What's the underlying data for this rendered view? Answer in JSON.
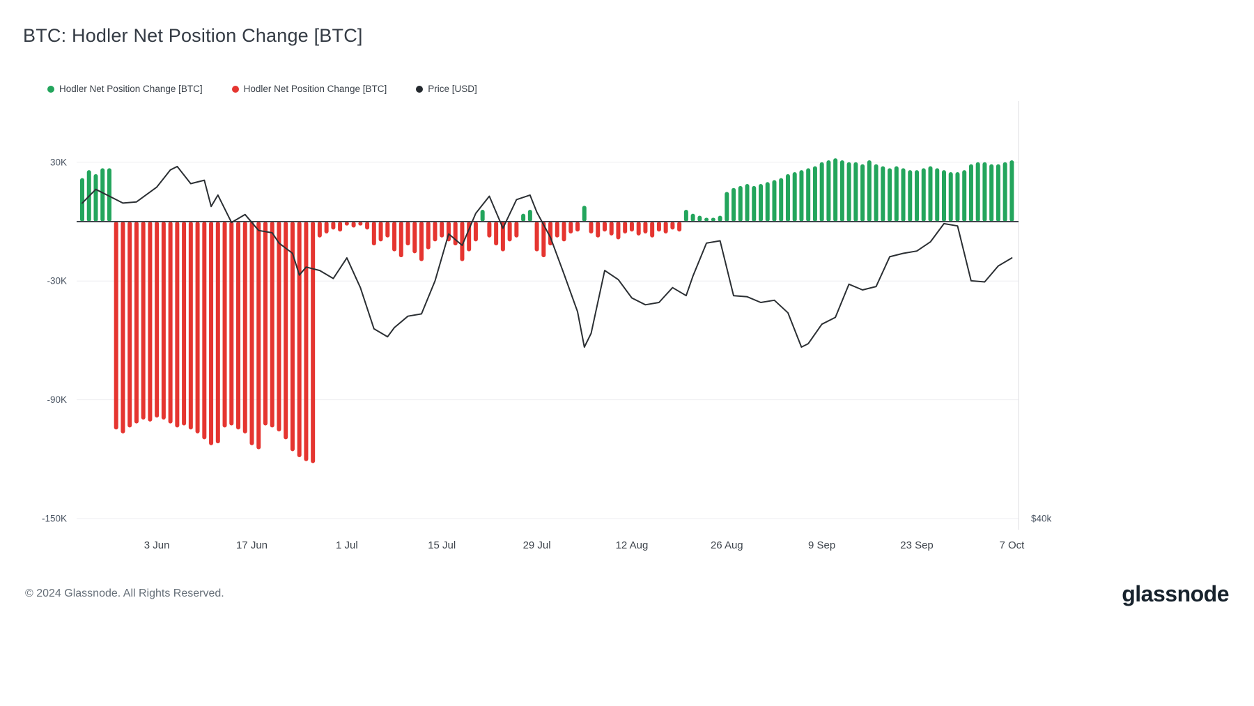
{
  "page": {
    "title": "BTC: Hodler Net Position Change [BTC]",
    "footer_copyright": "© 2024 Glassnode. All Rights Reserved.",
    "brand": "glassnode"
  },
  "legend": [
    {
      "label": "Hodler Net Position Change [BTC]",
      "color": "#23a55c"
    },
    {
      "label": "Hodler Net Position Change [BTC]",
      "color": "#e53530"
    },
    {
      "label": "Price [USD]",
      "color": "#24292e"
    }
  ],
  "chart_data": {
    "type": "bar",
    "title": "BTC: Hodler Net Position Change [BTC]",
    "y_axis": {
      "tick_labels": [
        "30K",
        "-30K",
        "-90K",
        "-150K"
      ],
      "tick_values": [
        30000,
        -30000,
        -90000,
        -150000
      ],
      "range": [
        -160000,
        45000
      ],
      "grid": true
    },
    "x_axis": {
      "tick_labels": [
        "3 Jun",
        "17 Jun",
        "1 Jul",
        "15 Jul",
        "29 Jul",
        "12 Aug",
        "26 Aug",
        "9 Sep",
        "23 Sep",
        "7 Oct"
      ],
      "tick_indices": [
        11,
        25,
        39,
        53,
        67,
        81,
        95,
        109,
        123,
        137
      ]
    },
    "right_axis_label": "$40k",
    "bars": {
      "name": "Hodler Net Position Change [BTC]",
      "start_date": "2024-05-23",
      "values": [
        22000,
        26000,
        24000,
        27000,
        27000,
        -105000,
        -107000,
        -104000,
        -102000,
        -100000,
        -101000,
        -99000,
        -100000,
        -102000,
        -104000,
        -103000,
        -105000,
        -107000,
        -110000,
        -113000,
        -112000,
        -104000,
        -103000,
        -105000,
        -107000,
        -113000,
        -115000,
        -103000,
        -104000,
        -106000,
        -110000,
        -116000,
        -119000,
        -121000,
        -122000,
        -8000,
        -6000,
        -4000,
        -5000,
        -2000,
        -3000,
        -2000,
        -4000,
        -12000,
        -10000,
        -8000,
        -15000,
        -18000,
        -12000,
        -16000,
        -20000,
        -14000,
        -10000,
        -8000,
        -10000,
        -12000,
        -20000,
        -15000,
        -10000,
        6000,
        -8000,
        -12000,
        -15000,
        -10000,
        -8000,
        4000,
        6000,
        -15000,
        -18000,
        -12000,
        -8000,
        -10000,
        -6000,
        -5000,
        8000,
        -6000,
        -8000,
        -5000,
        -7000,
        -9000,
        -6000,
        -5000,
        -7000,
        -6000,
        -8000,
        -5000,
        -6000,
        -4000,
        -5000,
        6000,
        4000,
        3000,
        2000,
        2000,
        3000,
        15000,
        17000,
        18000,
        19000,
        18000,
        19000,
        20000,
        21000,
        22000,
        24000,
        25000,
        26000,
        27000,
        28000,
        30000,
        31000,
        32000,
        31000,
        30000,
        30000,
        29000,
        31000,
        29000,
        28000,
        27000,
        28000,
        27000,
        26000,
        26000,
        27000,
        28000,
        27000,
        26000,
        25000,
        25000,
        26000,
        29000,
        30000,
        30000,
        29000,
        29000,
        30000,
        31000
      ]
    },
    "price": {
      "name": "Price [USD]",
      "unit": "thousand USD",
      "points": [
        [
          0,
          67.6
        ],
        [
          2,
          68.8
        ],
        [
          4,
          68.2
        ],
        [
          6,
          67.6
        ],
        [
          8,
          67.7
        ],
        [
          11,
          69.0
        ],
        [
          13,
          70.5
        ],
        [
          14,
          70.8
        ],
        [
          16,
          69.3
        ],
        [
          18,
          69.6
        ],
        [
          19,
          67.3
        ],
        [
          20,
          68.3
        ],
        [
          22,
          65.9
        ],
        [
          24,
          66.6
        ],
        [
          26,
          65.2
        ],
        [
          28,
          65.0
        ],
        [
          29,
          64.1
        ],
        [
          31,
          63.2
        ],
        [
          32,
          61.3
        ],
        [
          33,
          62.0
        ],
        [
          35,
          61.7
        ],
        [
          37,
          61.0
        ],
        [
          39,
          62.8
        ],
        [
          41,
          60.2
        ],
        [
          43,
          56.6
        ],
        [
          45,
          55.9
        ],
        [
          46,
          56.7
        ],
        [
          48,
          57.7
        ],
        [
          50,
          57.9
        ],
        [
          52,
          60.8
        ],
        [
          54,
          64.9
        ],
        [
          56,
          63.9
        ],
        [
          58,
          66.7
        ],
        [
          60,
          68.2
        ],
        [
          62,
          65.4
        ],
        [
          64,
          67.9
        ],
        [
          66,
          68.3
        ],
        [
          67,
          66.8
        ],
        [
          69,
          64.6
        ],
        [
          71,
          61.4
        ],
        [
          73,
          58.1
        ],
        [
          74,
          55.0
        ],
        [
          75,
          56.2
        ],
        [
          77,
          61.7
        ],
        [
          79,
          60.9
        ],
        [
          81,
          59.3
        ],
        [
          83,
          58.7
        ],
        [
          85,
          58.9
        ],
        [
          87,
          60.2
        ],
        [
          89,
          59.5
        ],
        [
          90,
          61.2
        ],
        [
          92,
          64.1
        ],
        [
          94,
          64.3
        ],
        [
          96,
          59.5
        ],
        [
          98,
          59.4
        ],
        [
          100,
          58.9
        ],
        [
          102,
          59.1
        ],
        [
          104,
          58.0
        ],
        [
          106,
          55.0
        ],
        [
          107,
          55.3
        ],
        [
          109,
          57.0
        ],
        [
          111,
          57.6
        ],
        [
          113,
          60.5
        ],
        [
          115,
          60.0
        ],
        [
          117,
          60.3
        ],
        [
          119,
          62.9
        ],
        [
          121,
          63.2
        ],
        [
          123,
          63.4
        ],
        [
          125,
          64.2
        ],
        [
          127,
          65.8
        ],
        [
          129,
          65.6
        ],
        [
          131,
          60.8
        ],
        [
          133,
          60.7
        ],
        [
          135,
          62.1
        ],
        [
          137,
          62.8
        ]
      ]
    },
    "colors": {
      "positive": "#23a55c",
      "negative": "#e53530",
      "price": "#2b2f33",
      "grid": "#ededf0",
      "axis_border": "#dcdee2",
      "zero_line": "#40454c",
      "tick_text": "#4b5563"
    },
    "legend_position": "top-left"
  }
}
